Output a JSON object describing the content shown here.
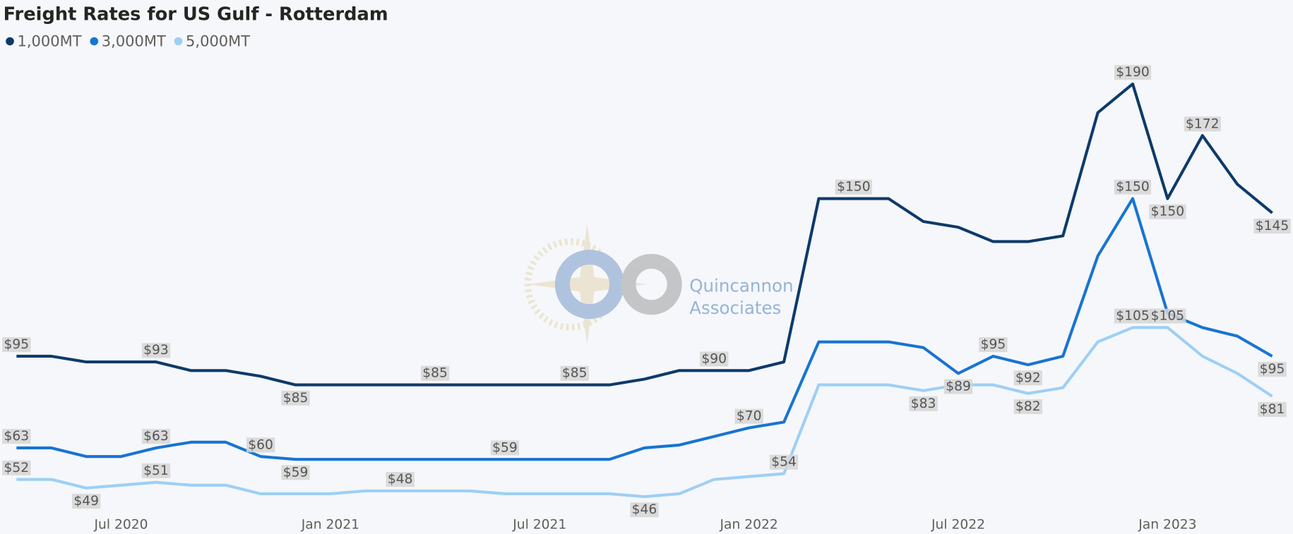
{
  "chart_data": {
    "type": "line",
    "title": "Freight Rates for US Gulf - Rotterdam",
    "categories": [
      null,
      null,
      null,
      "Jul 2020",
      null,
      null,
      null,
      null,
      null,
      "Jan 2021",
      null,
      null,
      null,
      null,
      null,
      "Jul 2021",
      null,
      null,
      null,
      null,
      null,
      "Jan 2022",
      null,
      null,
      null,
      null,
      null,
      "Jul 2022",
      null,
      null,
      null,
      null,
      null,
      "Jan 2023",
      null,
      null,
      null
    ],
    "series": [
      {
        "name": "1,000MT",
        "color": "#0e3a6a",
        "values": [
          95,
          95,
          93,
          93,
          93,
          90,
          90,
          88,
          85,
          85,
          85,
          85,
          85,
          85,
          85,
          85,
          85,
          85,
          87,
          90,
          90,
          90,
          93,
          150,
          150,
          150,
          142,
          140,
          135,
          135,
          137,
          180,
          190,
          150,
          172,
          155,
          145
        ],
        "value_labels": [
          "$95",
          null,
          null,
          null,
          "$93",
          null,
          null,
          null,
          "$85",
          null,
          null,
          null,
          "$85",
          null,
          null,
          null,
          "$85",
          null,
          null,
          null,
          "$90",
          null,
          null,
          null,
          "$150",
          null,
          null,
          null,
          null,
          null,
          null,
          null,
          "$190",
          "$150",
          "$172",
          null,
          "$145"
        ]
      },
      {
        "name": "3,000MT",
        "color": "#1874d2",
        "values": [
          63,
          63,
          60,
          60,
          63,
          65,
          65,
          60,
          59,
          59,
          59,
          59,
          59,
          59,
          59,
          59,
          59,
          59,
          63,
          64,
          67,
          70,
          72,
          100,
          100,
          100,
          98,
          89,
          95,
          92,
          95,
          130,
          150,
          110,
          105,
          102,
          95
        ],
        "value_labels": [
          "$63",
          null,
          null,
          null,
          "$63",
          null,
          null,
          "$60",
          "$59",
          null,
          null,
          null,
          null,
          null,
          "$59",
          null,
          null,
          null,
          null,
          null,
          null,
          "$70",
          null,
          null,
          null,
          null,
          null,
          "$89",
          "$95",
          "$92",
          null,
          null,
          "$150",
          null,
          null,
          null,
          "$95"
        ]
      },
      {
        "name": "5,000MT",
        "color": "#9ecff5",
        "values": [
          52,
          52,
          49,
          50,
          51,
          50,
          50,
          47,
          47,
          47,
          48,
          48,
          48,
          48,
          47,
          47,
          47,
          47,
          46,
          47,
          52,
          53,
          54,
          85,
          85,
          85,
          83,
          85,
          85,
          82,
          84,
          100,
          105,
          105,
          95,
          89,
          81
        ],
        "value_labels": [
          "$52",
          null,
          "$49",
          null,
          "$51",
          null,
          null,
          null,
          null,
          null,
          null,
          "$48",
          null,
          null,
          null,
          null,
          null,
          null,
          "$46",
          null,
          null,
          null,
          "$54",
          null,
          null,
          null,
          "$83",
          null,
          null,
          "$82",
          null,
          null,
          "$105",
          "$105",
          null,
          null,
          "$81"
        ]
      }
    ],
    "ylim": [
      33,
      200
    ],
    "legend": "top-left"
  },
  "watermark": {
    "line1": "Quincannon",
    "line2": "Associates"
  }
}
